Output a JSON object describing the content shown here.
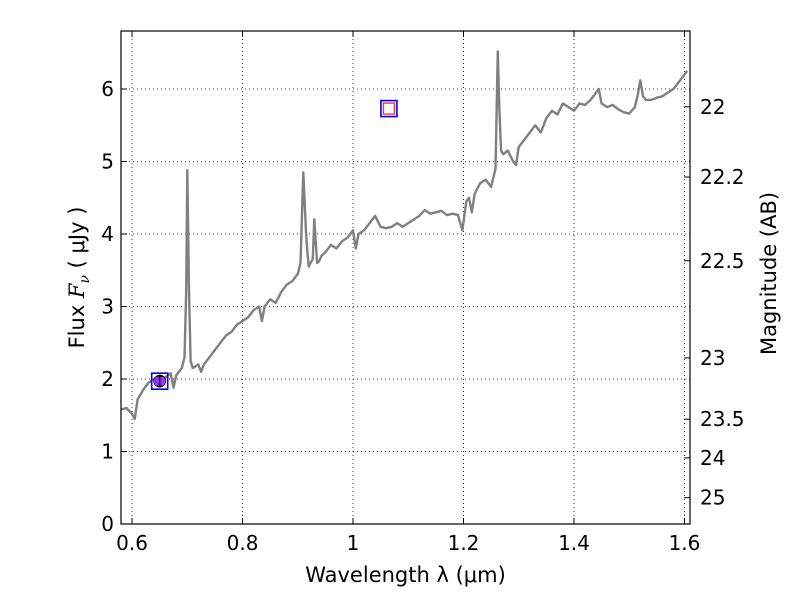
{
  "chart_data": {
    "type": "line",
    "xlabel": "Wavelength  λ (μm)",
    "ylabel_left": "Flux  Fν  ( μJy )",
    "ylabel_left_parts": {
      "prefix": "Flux ",
      "symbol": "F",
      "subscript": "ν",
      "suffix": "  ( μJy )"
    },
    "ylabel_right": "Magnitude (AB)",
    "xlim": [
      0.58,
      1.61
    ],
    "ylim": [
      0,
      6.8
    ],
    "grid": true,
    "grid_style": "dotted",
    "x_ticks": [
      0.6,
      0.8,
      1.0,
      1.2,
      1.4,
      1.6
    ],
    "x_tick_labels": [
      "0.6",
      "0.8",
      "1",
      "1.2",
      "1.4",
      "1.6"
    ],
    "y_ticks": [
      0,
      1,
      2,
      3,
      4,
      5,
      6
    ],
    "y_tick_labels": [
      "0",
      "1",
      "2",
      "3",
      "4",
      "5",
      "6"
    ],
    "right_ticks": [
      {
        "mag": 22.0,
        "label": "22"
      },
      {
        "mag": 22.2,
        "label": "22.2"
      },
      {
        "mag": 22.5,
        "label": "22.5"
      },
      {
        "mag": 23.0,
        "label": "23"
      },
      {
        "mag": 23.5,
        "label": "23.5"
      },
      {
        "mag": 24.0,
        "label": "24"
      },
      {
        "mag": 25.0,
        "label": "25"
      }
    ],
    "series": [
      {
        "color": "#808080",
        "x": [
          0.58,
          0.59,
          0.6,
          0.605,
          0.61,
          0.615,
          0.62,
          0.63,
          0.64,
          0.65,
          0.66,
          0.67,
          0.675,
          0.68,
          0.69,
          0.695,
          0.698,
          0.7,
          0.703,
          0.706,
          0.71,
          0.72,
          0.725,
          0.73,
          0.74,
          0.75,
          0.76,
          0.77,
          0.78,
          0.79,
          0.8,
          0.81,
          0.82,
          0.83,
          0.835,
          0.84,
          0.85,
          0.86,
          0.87,
          0.88,
          0.89,
          0.9,
          0.905,
          0.91,
          0.915,
          0.918,
          0.92,
          0.923,
          0.927,
          0.93,
          0.935,
          0.938,
          0.94,
          0.943,
          0.946,
          0.95,
          0.96,
          0.97,
          0.98,
          0.99,
          1.0,
          1.005,
          1.01,
          1.02,
          1.03,
          1.04,
          1.05,
          1.06,
          1.07,
          1.08,
          1.09,
          1.1,
          1.11,
          1.12,
          1.13,
          1.14,
          1.15,
          1.16,
          1.17,
          1.18,
          1.19,
          1.198,
          1.205,
          1.21,
          1.215,
          1.22,
          1.23,
          1.24,
          1.25,
          1.258,
          1.262,
          1.265,
          1.268,
          1.272,
          1.28,
          1.29,
          1.295,
          1.3,
          1.31,
          1.32,
          1.33,
          1.34,
          1.35,
          1.36,
          1.37,
          1.38,
          1.39,
          1.4,
          1.41,
          1.42,
          1.43,
          1.44,
          1.445,
          1.45,
          1.46,
          1.47,
          1.48,
          1.49,
          1.5,
          1.51,
          1.515,
          1.52,
          1.525,
          1.53,
          1.54,
          1.55,
          1.56,
          1.57,
          1.58,
          1.59,
          1.6,
          1.605
        ],
        "y": [
          1.58,
          1.6,
          1.52,
          1.45,
          1.72,
          1.78,
          1.85,
          1.95,
          2.0,
          2.05,
          2.02,
          2.08,
          1.88,
          2.05,
          2.15,
          2.3,
          3.2,
          4.88,
          3.3,
          2.25,
          2.15,
          2.2,
          2.1,
          2.2,
          2.3,
          2.4,
          2.5,
          2.6,
          2.65,
          2.75,
          2.8,
          2.85,
          2.95,
          3.0,
          2.8,
          3.0,
          3.1,
          3.05,
          3.2,
          3.3,
          3.35,
          3.45,
          3.6,
          4.85,
          4.0,
          3.7,
          3.55,
          3.6,
          3.65,
          4.2,
          3.6,
          3.62,
          3.65,
          3.7,
          3.72,
          3.75,
          3.85,
          3.8,
          3.9,
          3.95,
          4.05,
          3.8,
          4.0,
          4.05,
          4.15,
          4.25,
          4.1,
          4.08,
          4.1,
          4.15,
          4.1,
          4.15,
          4.2,
          4.25,
          4.33,
          4.28,
          4.3,
          4.32,
          4.26,
          4.28,
          4.26,
          4.05,
          4.45,
          4.5,
          4.3,
          4.55,
          4.7,
          4.75,
          4.65,
          4.9,
          6.52,
          5.7,
          5.15,
          5.1,
          5.15,
          5.0,
          4.95,
          5.2,
          5.3,
          5.4,
          5.5,
          5.4,
          5.6,
          5.7,
          5.65,
          5.8,
          5.75,
          5.7,
          5.8,
          5.78,
          5.85,
          5.95,
          6.0,
          5.8,
          5.75,
          5.78,
          5.72,
          5.68,
          5.66,
          5.75,
          5.9,
          6.12,
          5.9,
          5.85,
          5.85,
          5.88,
          5.9,
          5.95,
          6.0,
          6.1,
          6.2,
          6.25
        ]
      }
    ],
    "photometry": [
      {
        "x": 0.65,
        "y": 1.97,
        "marker": "circle",
        "fill": "#9b30ff",
        "box_color": "#0000ff",
        "errorbar": [
          1.9,
          2.04
        ]
      },
      {
        "x": 1.065,
        "y": 5.73,
        "marker": "square-open",
        "edge": "#ff3333",
        "box_color": "#0000ff"
      }
    ]
  }
}
